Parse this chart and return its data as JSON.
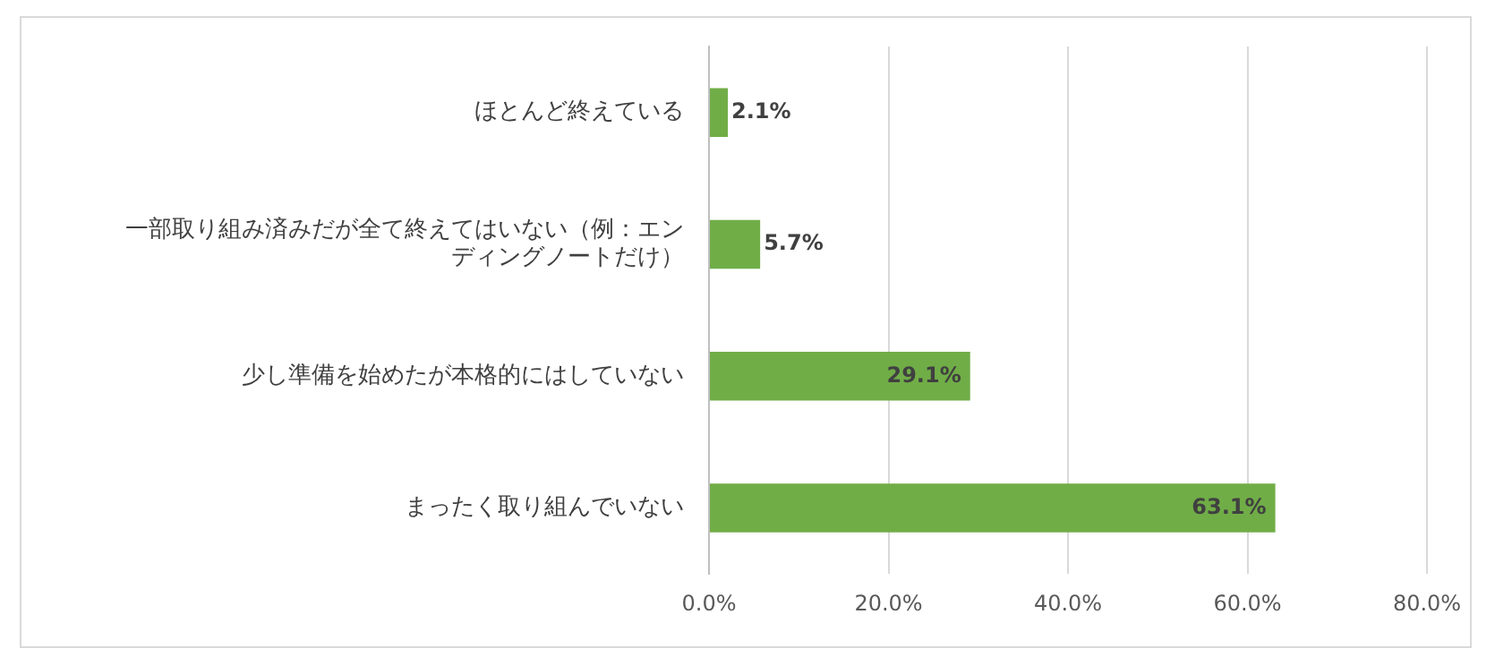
{
  "chart_data": {
    "type": "bar",
    "orientation": "horizontal",
    "categories": [
      "ほとんど終えている",
      "一部取り組み済みだが全て終えてはいない（例：エンディングノートだけ）",
      "少し準備を始めたが本格的にはしていない",
      "まったく取り組んでいない"
    ],
    "values": [
      2.1,
      5.7,
      29.1,
      63.1
    ],
    "color": "#70ad47",
    "value_labels": [
      "2.1%",
      "5.7%",
      "29.1%",
      "63.1%"
    ],
    "xlim": [
      0,
      80
    ],
    "xticks": [
      {
        "value": 0,
        "label": "0.0%"
      },
      {
        "value": 20,
        "label": "20.0%"
      },
      {
        "value": 40,
        "label": "40.0%"
      },
      {
        "value": 60,
        "label": "60.0%"
      },
      {
        "value": 80,
        "label": "80.0%"
      }
    ],
    "grid": "x",
    "legend": false
  }
}
